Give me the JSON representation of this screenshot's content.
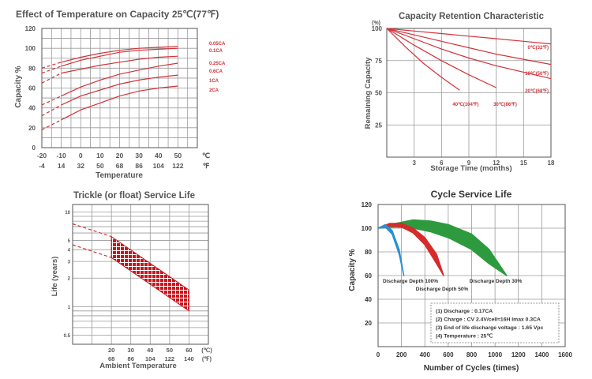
{
  "chart_data": [
    {
      "type": "line",
      "title": "Effect of Temperature on Capacity  25℃(77℉)",
      "xlabel": "Temperature",
      "ylabel": "Capacity %",
      "x_unit_c": "℃",
      "x_unit_f": "℉",
      "x_ticks_c": [
        "-20",
        "-10",
        "0",
        "10",
        "20",
        "30",
        "40",
        "50"
      ],
      "x_ticks_f": [
        "-4",
        "14",
        "32",
        "50",
        "68",
        "86",
        "104",
        "122"
      ],
      "y_ticks": [
        "0",
        "20",
        "40",
        "60",
        "80",
        "100",
        "120"
      ],
      "ylim": [
        0,
        120
      ],
      "xlim": [
        -20,
        60
      ],
      "grid": true,
      "series": [
        {
          "name": "0.05CA",
          "x": [
            -20,
            -10,
            0,
            10,
            20,
            30,
            40,
            50
          ],
          "values": [
            80,
            86,
            91,
            95,
            98,
            100,
            101,
            102
          ],
          "dashed_below": -10
        },
        {
          "name": "0.1CA",
          "x": [
            -20,
            -10,
            0,
            10,
            20,
            30,
            40,
            50
          ],
          "values": [
            75,
            82,
            88,
            92,
            96,
            98,
            99,
            100
          ],
          "dashed_below": -10
        },
        {
          "name": "0.25CA",
          "x": [
            -20,
            -10,
            0,
            10,
            20,
            30,
            40,
            50
          ],
          "values": [
            65,
            75,
            79,
            83,
            86,
            89,
            91,
            92
          ],
          "dashed_below": -10
        },
        {
          "name": "0.6CA",
          "x": [
            -20,
            -10,
            0,
            10,
            20,
            30,
            40,
            50
          ],
          "values": [
            43,
            52,
            61,
            68,
            74,
            78,
            82,
            85
          ],
          "dashed_below": -10
        },
        {
          "name": "1CA",
          "x": [
            -20,
            -10,
            0,
            10,
            20,
            30,
            40,
            50
          ],
          "values": [
            32,
            43,
            52,
            58,
            64,
            68,
            71,
            73
          ],
          "dashed_below": -10
        },
        {
          "name": "2CA",
          "x": [
            -20,
            -10,
            0,
            10,
            20,
            30,
            40,
            50
          ],
          "values": [
            18,
            28,
            38,
            45,
            52,
            57,
            60,
            62
          ],
          "dashed_below": -10
        }
      ]
    },
    {
      "type": "line",
      "title": "Capacity Retention Characteristic",
      "xlabel": "Storage Time (months)",
      "ylabel": "Remaining Capacity",
      "y_unit": "(%)",
      "x_ticks": [
        "3",
        "6",
        "9",
        "12",
        "15",
        "18"
      ],
      "y_ticks": [
        "25",
        "50",
        "75",
        "100"
      ],
      "xlim": [
        0,
        18
      ],
      "ylim": [
        0,
        100
      ],
      "series": [
        {
          "name": "0℃(32℉)",
          "x": [
            0,
            3,
            6,
            9,
            12,
            15,
            18
          ],
          "values": [
            100,
            98,
            96,
            94,
            92,
            90,
            88
          ]
        },
        {
          "name": "10℃(50℉)",
          "x": [
            0,
            3,
            6,
            9,
            12,
            15,
            18
          ],
          "values": [
            100,
            95,
            90,
            85,
            80,
            76,
            72
          ]
        },
        {
          "name": "20℃(68℉)",
          "x": [
            0,
            3,
            6,
            9,
            12,
            15,
            18
          ],
          "values": [
            100,
            92,
            84,
            77,
            71,
            66,
            61
          ]
        },
        {
          "name": "30℃(86℉)",
          "x": [
            0,
            3,
            6,
            9,
            12
          ],
          "values": [
            100,
            87,
            75,
            64,
            54
          ]
        },
        {
          "name": "40℃(104℉)",
          "x": [
            0,
            2,
            4,
            6,
            8
          ],
          "values": [
            100,
            86,
            73,
            62,
            52
          ]
        }
      ]
    },
    {
      "type": "area",
      "title": "Trickle (or float) Service Life",
      "xlabel": "Ambient Temperature",
      "ylabel": "Life (years)",
      "x_unit_c": "(℃)",
      "x_unit_f": "(℉)",
      "x_ticks_c": [
        "20",
        "30",
        "40",
        "50",
        "60"
      ],
      "x_ticks_f": [
        "68",
        "86",
        "104",
        "122",
        "140"
      ],
      "y_ticks": [
        "10",
        "5",
        "4",
        "3",
        "2",
        "1",
        "0.5"
      ],
      "y_scale": "log",
      "ylim": [
        0.4,
        12
      ],
      "xlim": [
        0,
        70
      ],
      "band": {
        "x": [
          20,
          60
        ],
        "upper": [
          5.5,
          1.5
        ],
        "lower": [
          3.3,
          0.9
        ]
      },
      "dashed_extension": {
        "x": [
          0,
          20
        ],
        "upper": [
          7.5,
          5.5
        ],
        "lower": [
          4.5,
          3.3
        ]
      }
    },
    {
      "type": "area",
      "title": "Cycle Service Life",
      "xlabel": "Number of Cycles (times)",
      "ylabel": "Capacity %",
      "x_ticks": [
        "0",
        "200",
        "400",
        "600",
        "800",
        "1000",
        "1200",
        "1400",
        "1600"
      ],
      "y_ticks": [
        "20",
        "40",
        "60",
        "80",
        "100",
        "120"
      ],
      "xlim": [
        0,
        1600
      ],
      "ylim": [
        0,
        120
      ],
      "series": [
        {
          "name": "Discharge Depth 100%",
          "color": "#2a8fd6",
          "x": [
            0,
            60,
            120,
            180,
            220
          ],
          "upper": [
            100,
            103,
            98,
            82,
            60
          ],
          "lower": [
            100,
            101,
            95,
            78,
            60
          ]
        },
        {
          "name": "Discharge Depth 50%",
          "color": "#d62b2b",
          "x": [
            0,
            100,
            200,
            300,
            400,
            500,
            560
          ],
          "upper": [
            100,
            104,
            104,
            100,
            92,
            78,
            60
          ],
          "lower": [
            100,
            102,
            101,
            96,
            86,
            70,
            60
          ]
        },
        {
          "name": "Discharge Depth 30%",
          "color": "#2e9a3e",
          "x": [
            0,
            150,
            300,
            450,
            600,
            800,
            950,
            1100
          ],
          "upper": [
            100,
            104,
            107,
            106,
            103,
            95,
            82,
            60
          ],
          "lower": [
            100,
            101,
            100,
            97,
            92,
            82,
            70,
            60
          ]
        }
      ],
      "notes": [
        "(1) Discharge : 0.17CA",
        "(2) Charge : CV 2.4V/cell≈16H Imax 0.3CA",
        "(3) End of life discharge voltage : 1.65 Vpc",
        "(4) Temperature : 25℃"
      ]
    }
  ]
}
